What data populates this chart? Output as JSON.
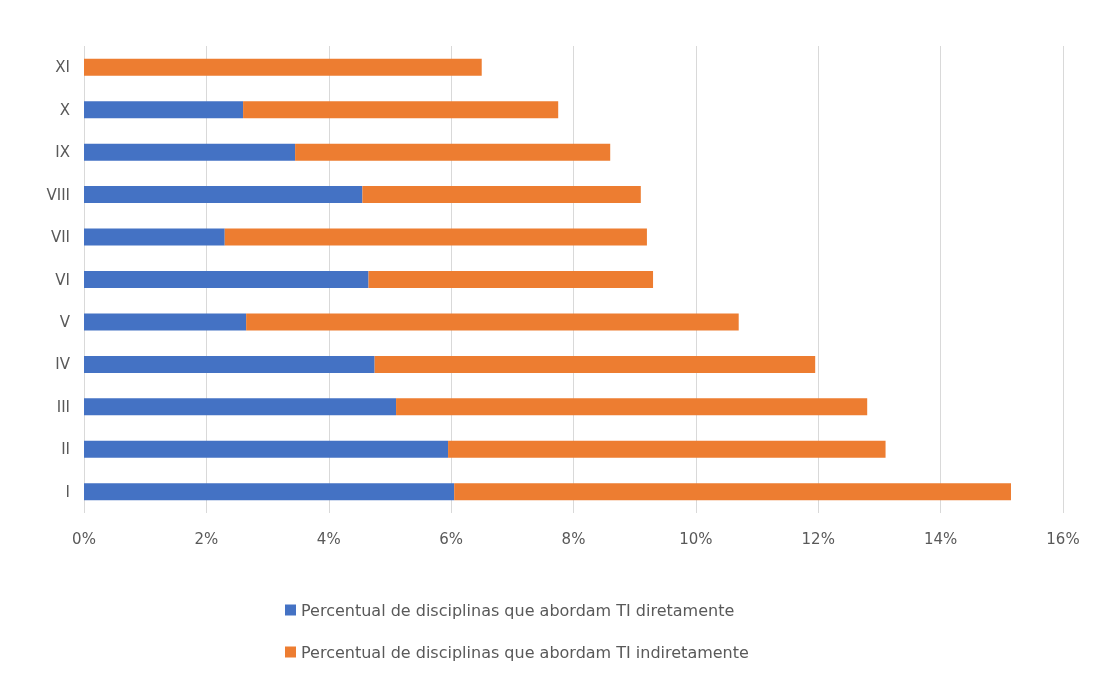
{
  "chart_data": {
    "type": "bar",
    "orientation": "horizontal",
    "stacked": true,
    "categories": [
      "XI",
      "X",
      "IX",
      "VIII",
      "VII",
      "VI",
      "V",
      "IV",
      "III",
      "II",
      "I"
    ],
    "series": [
      {
        "name": "Percentual de disciplinas que abordam TI diretamente",
        "color": "#4472c4",
        "values": [
          0,
          2.6,
          3.45,
          4.55,
          2.3,
          4.65,
          2.65,
          4.75,
          5.1,
          5.95,
          6.05
        ]
      },
      {
        "name": "Percentual de disciplinas que abordam TI indiretamente",
        "color": "#ed7d31",
        "values": [
          6.5,
          5.15,
          5.15,
          4.55,
          6.9,
          4.65,
          8.05,
          7.2,
          7.7,
          7.15,
          9.1
        ]
      }
    ],
    "xlim": [
      0,
      16
    ],
    "xticks": [
      {
        "value": 0,
        "label": "0%"
      },
      {
        "value": 2,
        "label": "2%"
      },
      {
        "value": 4,
        "label": "4%"
      },
      {
        "value": 6,
        "label": "6%"
      },
      {
        "value": 8,
        "label": "8%"
      },
      {
        "value": 10,
        "label": "10%"
      },
      {
        "value": 12,
        "label": "12%"
      },
      {
        "value": 14,
        "label": "14%"
      },
      {
        "value": 16,
        "label": "16%"
      }
    ],
    "grid": "x",
    "legend": "bottom"
  }
}
